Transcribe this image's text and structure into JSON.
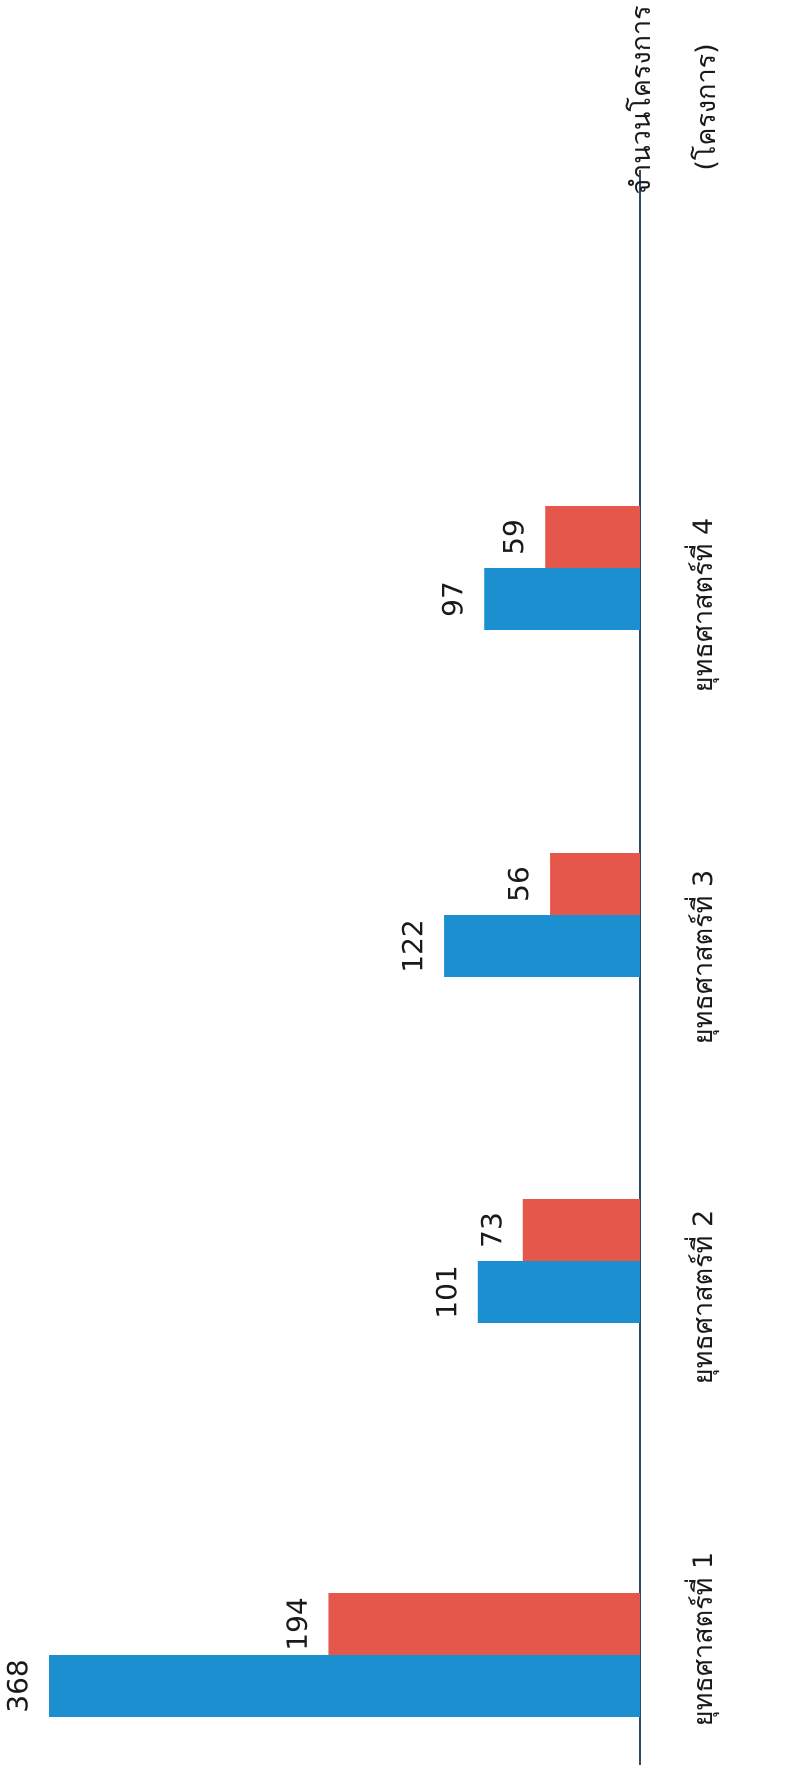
{
  "chart_data": {
    "type": "bar",
    "orientation": "rotated",
    "categories": [
      "ยุทธศาสตร์ที่  1",
      "ยุทธศาสตร์ที่  2",
      "ยุทธศาสตร์ที่  3",
      "ยุทธศาสตร์ที่  4"
    ],
    "series": [
      {
        "values": [
          368,
          101,
          122,
          97
        ],
        "color": "#1b8fd0"
      },
      {
        "values": [
          194,
          73,
          56,
          59
        ],
        "color": "#e4574a"
      }
    ],
    "ylabel": "จำนวนโครงการ",
    "ylabel_unit": "(โครงการ)",
    "ylim": [
      0,
      380
    ],
    "grid": false,
    "legend": "none"
  },
  "colors": {
    "axis": "#2f4a6b"
  }
}
